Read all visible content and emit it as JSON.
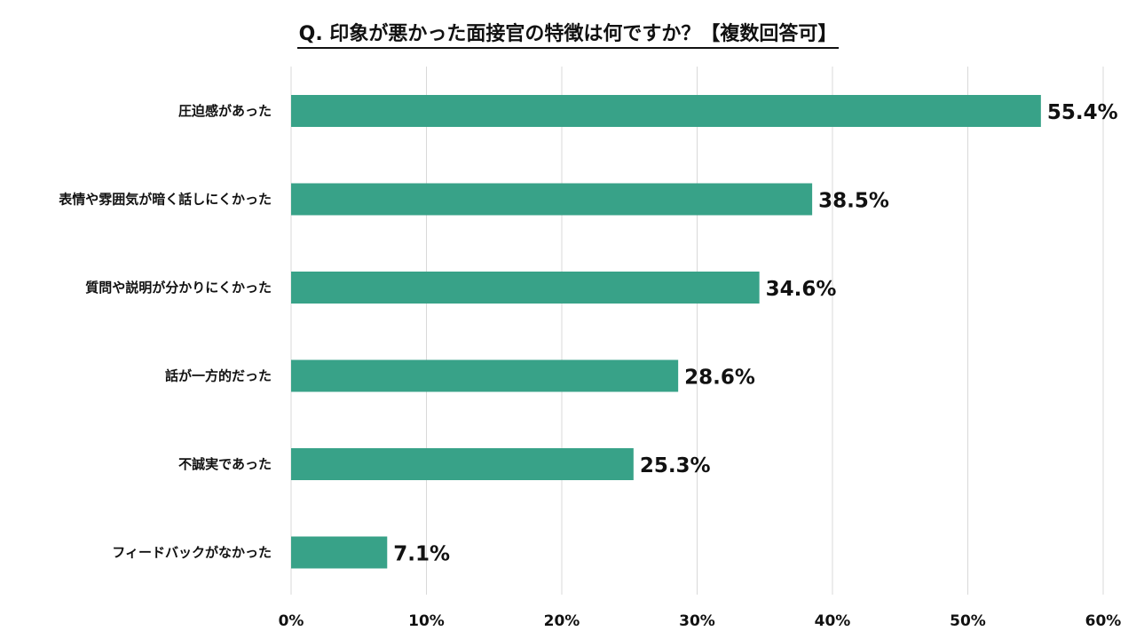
{
  "chart_data": {
    "type": "bar",
    "orientation": "horizontal",
    "title": "Q. 印象が悪かった面接官の特徴は何ですか？【複数回答可】",
    "categories": [
      "圧迫感があった",
      "表情や雰囲気が暗く話しにくかった",
      "質問や説明が分かりにくかった",
      "話が一方的だった",
      "不誠実であった",
      "フィードバックがなかった"
    ],
    "values": [
      55.4,
      38.5,
      34.6,
      28.6,
      25.3,
      7.1
    ],
    "value_labels": [
      "55.4%",
      "38.5%",
      "34.6%",
      "28.6%",
      "25.3%",
      "7.1%"
    ],
    "xlim": [
      0,
      60
    ],
    "ticks": [
      0,
      10,
      20,
      30,
      40,
      50,
      60
    ],
    "tick_labels": [
      "0%",
      "10%",
      "20%",
      "30%",
      "40%",
      "50%",
      "60%"
    ],
    "grid": true,
    "bar_color": "#38a288",
    "grid_color": "#d9d9d9"
  }
}
